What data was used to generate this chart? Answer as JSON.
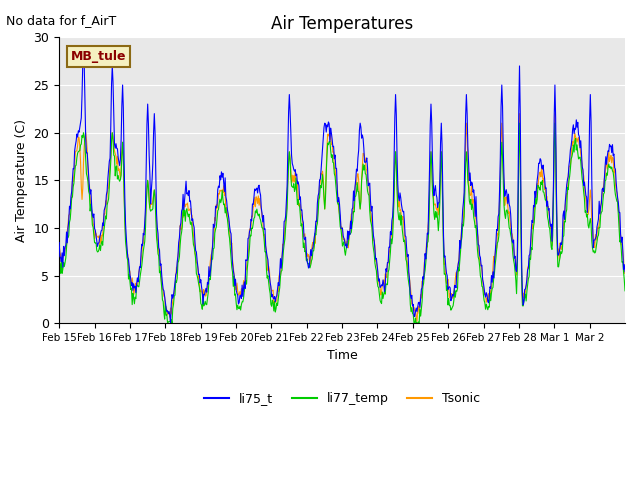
{
  "title": "Air Temperatures",
  "no_data_text": "No data for f_AirT",
  "mb_tule_label": "MB_tule",
  "xlabel": "Time",
  "ylabel": "Air Temperature (C)",
  "ylim": [
    0,
    30
  ],
  "line_colors": {
    "li75_t": "#0000ff",
    "li77_temp": "#00cc00",
    "Tsonic": "#ff9900"
  },
  "bg_color": "#e8e8e8",
  "fig_color": "#ffffff",
  "xtick_labels": [
    "Feb 15",
    "Feb 16",
    "Feb 17",
    "Feb 18",
    "Feb 19",
    "Feb 20",
    "Feb 21",
    "Feb 22",
    "Feb 23",
    "Feb 24",
    "Feb 25",
    "Feb 26",
    "Feb 27",
    "Feb 28",
    "Mar 1",
    "Mar 2"
  ],
  "ytick_vals": [
    0,
    5,
    10,
    15,
    20,
    25,
    30
  ]
}
